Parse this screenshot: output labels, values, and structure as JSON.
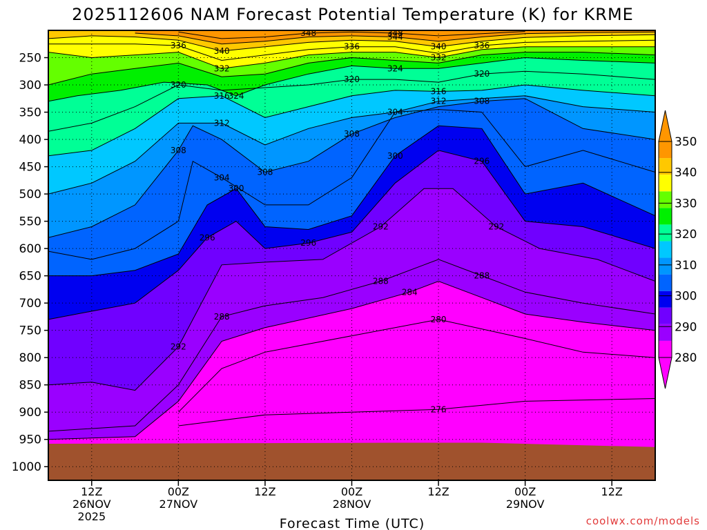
{
  "chart_data": {
    "type": "heatmap",
    "title": "2025112606 NAM Forecast Potential Temperature (K) for KRME",
    "xlabel": "Forecast Time (UTC)",
    "ylabel": "",
    "y_ticks": [
      "250",
      "300",
      "350",
      "400",
      "450",
      "500",
      "550",
      "600",
      "650",
      "700",
      "750",
      "800",
      "850",
      "900",
      "950",
      "1000"
    ],
    "y_range": [
      200,
      1025
    ],
    "x_range_hours": [
      6,
      90
    ],
    "x_ticks": [
      {
        "hour": 12,
        "lines": [
          "12Z",
          "26NOV",
          "2025"
        ]
      },
      {
        "hour": 24,
        "lines": [
          "00Z",
          "27NOV"
        ]
      },
      {
        "hour": 36,
        "lines": [
          "12Z"
        ]
      },
      {
        "hour": 48,
        "lines": [
          "00Z",
          "28NOV"
        ]
      },
      {
        "hour": 60,
        "lines": [
          "12Z"
        ]
      },
      {
        "hour": 72,
        "lines": [
          "00Z",
          "29NOV"
        ]
      },
      {
        "hour": 84,
        "lines": [
          "12Z"
        ]
      }
    ],
    "grid": true,
    "colorbar": {
      "levels": [
        280,
        290,
        300,
        310,
        320,
        330,
        340,
        350
      ],
      "labels": [
        "280",
        "290",
        "300",
        "310",
        "320",
        "330",
        "340",
        "350"
      ],
      "colors": [
        "#ff00ff",
        "#9a00ff",
        "#7000ff",
        "#0000f0",
        "#0064ff",
        "#0096ff",
        "#00c8ff",
        "#00ff96",
        "#00f000",
        "#64ff00",
        "#ffff00",
        "#ffc800",
        "#ff9600"
      ],
      "placement": "right"
    },
    "ground_color": "#a0522d",
    "surface_pressure_hpa": [
      [
        6,
        958
      ],
      [
        30,
        957
      ],
      [
        54,
        956
      ],
      [
        66,
        956
      ],
      [
        90,
        964
      ]
    ],
    "isentropes": [
      {
        "theta": 276,
        "labels": [
          "276"
        ],
        "points": [
          [
            24,
            925
          ],
          [
            36,
            905
          ],
          [
            48,
            900
          ],
          [
            60,
            895
          ],
          [
            72,
            880
          ],
          [
            90,
            875
          ]
        ]
      },
      {
        "theta": 280,
        "labels": [
          "280"
        ],
        "points": [
          [
            24,
            900
          ],
          [
            30,
            820
          ],
          [
            36,
            790
          ],
          [
            48,
            760
          ],
          [
            60,
            730
          ],
          [
            72,
            765
          ],
          [
            80,
            790
          ],
          [
            90,
            800
          ]
        ]
      },
      {
        "theta": 284,
        "labels": [
          "284"
        ],
        "points": [
          [
            6,
            950
          ],
          [
            18,
            945
          ],
          [
            24,
            880
          ],
          [
            30,
            770
          ],
          [
            36,
            745
          ],
          [
            48,
            710
          ],
          [
            56,
            680
          ],
          [
            60,
            660
          ],
          [
            66,
            690
          ],
          [
            72,
            720
          ],
          [
            80,
            735
          ],
          [
            90,
            750
          ]
        ]
      },
      {
        "theta": 288,
        "labels": [
          "288",
          "288",
          "288"
        ],
        "points": [
          [
            6,
            935
          ],
          [
            18,
            925
          ],
          [
            24,
            850
          ],
          [
            30,
            725
          ],
          [
            36,
            705
          ],
          [
            44,
            690
          ],
          [
            52,
            660
          ],
          [
            58,
            630
          ],
          [
            60,
            620
          ],
          [
            66,
            650
          ],
          [
            72,
            680
          ],
          [
            80,
            700
          ],
          [
            90,
            720
          ]
        ]
      },
      {
        "theta": 292,
        "labels": [
          "292",
          "292",
          "292"
        ],
        "points": [
          [
            6,
            850
          ],
          [
            12,
            845
          ],
          [
            18,
            860
          ],
          [
            24,
            780
          ],
          [
            30,
            630
          ],
          [
            36,
            625
          ],
          [
            44,
            620
          ],
          [
            52,
            560
          ],
          [
            58,
            490
          ],
          [
            62,
            490
          ],
          [
            68,
            560
          ],
          [
            74,
            600
          ],
          [
            82,
            620
          ],
          [
            90,
            660
          ]
        ]
      },
      {
        "theta": 296,
        "labels": [
          "296",
          "296",
          "296"
        ],
        "points": [
          [
            6,
            730
          ],
          [
            12,
            715
          ],
          [
            18,
            700
          ],
          [
            24,
            640
          ],
          [
            28,
            580
          ],
          [
            32,
            550
          ],
          [
            36,
            600
          ],
          [
            42,
            590
          ],
          [
            48,
            570
          ],
          [
            54,
            480
          ],
          [
            60,
            420
          ],
          [
            66,
            440
          ],
          [
            72,
            550
          ],
          [
            80,
            560
          ],
          [
            90,
            600
          ]
        ]
      },
      {
        "theta": 300,
        "labels": [
          "300",
          "300"
        ],
        "points": [
          [
            6,
            650
          ],
          [
            12,
            650
          ],
          [
            18,
            640
          ],
          [
            24,
            610
          ],
          [
            28,
            520
          ],
          [
            32,
            490
          ],
          [
            36,
            560
          ],
          [
            42,
            565
          ],
          [
            48,
            540
          ],
          [
            54,
            430
          ],
          [
            60,
            375
          ],
          [
            66,
            380
          ],
          [
            72,
            500
          ],
          [
            80,
            480
          ],
          [
            90,
            540
          ]
        ]
      },
      {
        "theta": 304,
        "labels": [
          "304",
          "304"
        ],
        "points": [
          [
            6,
            605
          ],
          [
            12,
            620
          ],
          [
            18,
            600
          ],
          [
            24,
            550
          ],
          [
            26,
            440
          ],
          [
            30,
            470
          ],
          [
            36,
            520
          ],
          [
            42,
            520
          ],
          [
            48,
            470
          ],
          [
            54,
            350
          ],
          [
            60,
            345
          ],
          [
            66,
            350
          ],
          [
            72,
            450
          ],
          [
            80,
            420
          ],
          [
            90,
            460
          ]
        ]
      },
      {
        "theta": 308,
        "labels": [
          "308",
          "308",
          "308",
          "308"
        ],
        "points": [
          [
            6,
            580
          ],
          [
            12,
            560
          ],
          [
            18,
            520
          ],
          [
            24,
            420
          ],
          [
            26,
            375
          ],
          [
            30,
            400
          ],
          [
            36,
            460
          ],
          [
            42,
            440
          ],
          [
            48,
            390
          ],
          [
            54,
            360
          ],
          [
            60,
            340
          ],
          [
            66,
            330
          ],
          [
            72,
            325
          ],
          [
            80,
            380
          ],
          [
            90,
            400
          ]
        ]
      },
      {
        "theta": 312,
        "labels": [
          "312",
          "312"
        ],
        "points": [
          [
            6,
            500
          ],
          [
            12,
            480
          ],
          [
            18,
            440
          ],
          [
            24,
            370
          ],
          [
            30,
            370
          ],
          [
            36,
            410
          ],
          [
            42,
            380
          ],
          [
            48,
            360
          ],
          [
            54,
            350
          ],
          [
            60,
            330
          ],
          [
            66,
            325
          ],
          [
            72,
            320
          ],
          [
            80,
            340
          ],
          [
            90,
            350
          ]
        ]
      },
      {
        "theta": 316,
        "labels": [
          "316",
          "316"
        ],
        "points": [
          [
            6,
            430
          ],
          [
            12,
            420
          ],
          [
            18,
            380
          ],
          [
            24,
            325
          ],
          [
            30,
            320
          ],
          [
            36,
            360
          ],
          [
            42,
            340
          ],
          [
            48,
            320
          ],
          [
            54,
            310
          ],
          [
            60,
            312
          ],
          [
            66,
            310
          ],
          [
            72,
            300
          ],
          [
            80,
            310
          ],
          [
            90,
            320
          ]
        ]
      },
      {
        "theta": 320,
        "labels": [
          "320",
          "320",
          "320"
        ],
        "points": [
          [
            6,
            385
          ],
          [
            12,
            370
          ],
          [
            18,
            340
          ],
          [
            24,
            300
          ],
          [
            30,
            310
          ],
          [
            36,
            305
          ],
          [
            42,
            300
          ],
          [
            48,
            290
          ],
          [
            54,
            290
          ],
          [
            60,
            295
          ],
          [
            66,
            280
          ],
          [
            72,
            275
          ],
          [
            80,
            280
          ],
          [
            90,
            290
          ]
        ]
      },
      {
        "theta": 324,
        "labels": [
          "324",
          "324"
        ],
        "points": [
          [
            6,
            330
          ],
          [
            10,
            320
          ],
          [
            16,
            310
          ],
          [
            22,
            295
          ],
          [
            28,
            300
          ],
          [
            32,
            320
          ],
          [
            36,
            300
          ],
          [
            42,
            280
          ],
          [
            48,
            265
          ],
          [
            54,
            270
          ],
          [
            60,
            270
          ],
          [
            66,
            260
          ],
          [
            72,
            250
          ],
          [
            80,
            255
          ],
          [
            90,
            260
          ]
        ]
      },
      {
        "theta": 328,
        "labels": [],
        "points": [
          [
            6,
            300
          ],
          [
            12,
            280
          ],
          [
            18,
            270
          ],
          [
            24,
            260
          ],
          [
            30,
            285
          ],
          [
            36,
            280
          ],
          [
            42,
            260
          ],
          [
            48,
            250
          ],
          [
            54,
            255
          ],
          [
            60,
            260
          ],
          [
            66,
            245
          ],
          [
            72,
            240
          ],
          [
            80,
            240
          ],
          [
            90,
            245
          ]
        ]
      },
      {
        "theta": 332,
        "labels": [
          "332",
          "332"
        ],
        "points": [
          [
            6,
            240
          ],
          [
            12,
            250
          ],
          [
            18,
            245
          ],
          [
            24,
            240
          ],
          [
            30,
            270
          ],
          [
            36,
            260
          ],
          [
            42,
            245
          ],
          [
            48,
            240
          ],
          [
            54,
            240
          ],
          [
            60,
            250
          ],
          [
            66,
            235
          ],
          [
            72,
            230
          ],
          [
            80,
            230
          ],
          [
            90,
            230
          ]
        ]
      },
      {
        "theta": 336,
        "labels": [
          "336",
          "336",
          "336"
        ],
        "points": [
          [
            6,
            225
          ],
          [
            12,
            225
          ],
          [
            18,
            225
          ],
          [
            24,
            228
          ],
          [
            30,
            255
          ],
          [
            36,
            245
          ],
          [
            42,
            235
          ],
          [
            48,
            230
          ],
          [
            54,
            230
          ],
          [
            60,
            242
          ],
          [
            66,
            228
          ],
          [
            72,
            222
          ],
          [
            80,
            220
          ],
          [
            90,
            218
          ]
        ]
      },
      {
        "theta": 340,
        "labels": [
          "340",
          "340"
        ],
        "points": [
          [
            6,
            215
          ],
          [
            12,
            210
          ],
          [
            18,
            212
          ],
          [
            24,
            218
          ],
          [
            30,
            238
          ],
          [
            36,
            230
          ],
          [
            42,
            222
          ],
          [
            48,
            218
          ],
          [
            54,
            220
          ],
          [
            60,
            230
          ],
          [
            66,
            220
          ],
          [
            72,
            213
          ],
          [
            80,
            210
          ],
          [
            90,
            208
          ]
        ]
      },
      {
        "theta": 344,
        "labels": [
          "344"
        ],
        "points": [
          [
            18,
            205
          ],
          [
            24,
            210
          ],
          [
            30,
            225
          ],
          [
            36,
            220
          ],
          [
            42,
            212
          ],
          [
            48,
            210
          ],
          [
            54,
            212
          ],
          [
            60,
            220
          ],
          [
            66,
            212
          ],
          [
            72,
            206
          ],
          [
            80,
            204
          ],
          [
            90,
            203
          ]
        ]
      },
      {
        "theta": 348,
        "labels": [
          "348",
          "348"
        ],
        "points": [
          [
            24,
            203
          ],
          [
            30,
            215
          ],
          [
            36,
            212
          ],
          [
            42,
            205
          ],
          [
            48,
            203
          ],
          [
            54,
            205
          ],
          [
            60,
            210
          ],
          [
            66,
            206
          ],
          [
            72,
            202
          ]
        ]
      }
    ]
  },
  "footer": {
    "credit": "coolwx.com/models"
  }
}
